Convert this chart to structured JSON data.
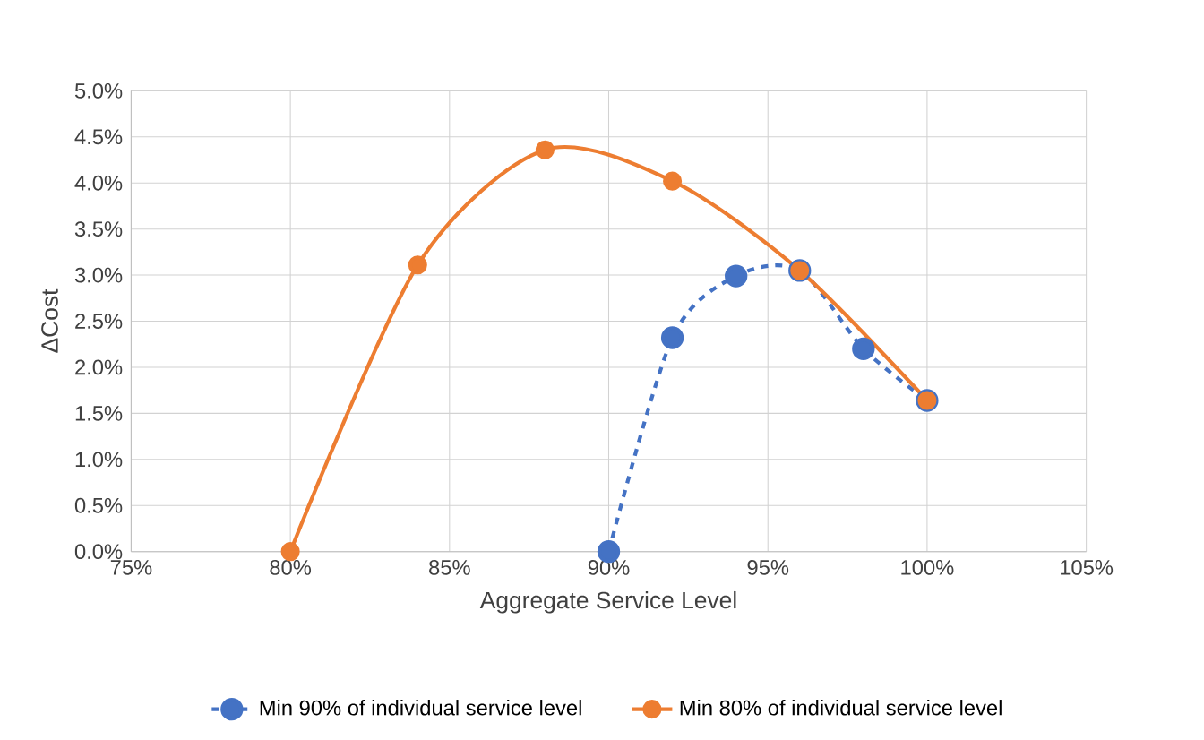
{
  "chart_data": {
    "type": "line",
    "xlabel": "Aggregate Service Level",
    "ylabel": "ΔCost",
    "xlim": [
      75,
      105
    ],
    "ylim": [
      0,
      5
    ],
    "xticks": [
      {
        "value": 75,
        "label": "75%"
      },
      {
        "value": 80,
        "label": "80%"
      },
      {
        "value": 85,
        "label": "85%"
      },
      {
        "value": 90,
        "label": "90%"
      },
      {
        "value": 95,
        "label": "95%"
      },
      {
        "value": 100,
        "label": "100%"
      },
      {
        "value": 105,
        "label": "105%"
      }
    ],
    "yticks": [
      {
        "value": 0,
        "label": "0.0%"
      },
      {
        "value": 0.5,
        "label": "0.5%"
      },
      {
        "value": 1,
        "label": "1.0%"
      },
      {
        "value": 1.5,
        "label": "1.5%"
      },
      {
        "value": 2,
        "label": "2.0%"
      },
      {
        "value": 2.5,
        "label": "2.5%"
      },
      {
        "value": 3,
        "label": "3.0%"
      },
      {
        "value": 3.5,
        "label": "3.5%"
      },
      {
        "value": 4,
        "label": "4.0%"
      },
      {
        "value": 4.5,
        "label": "4.5%"
      },
      {
        "value": 5,
        "label": "5.0%"
      }
    ],
    "grid": true,
    "legend": "bottom",
    "marker": "circle",
    "series": [
      {
        "name": "Min 90% of individual service level",
        "color": "#4472c4",
        "line_style": "dashed",
        "x": [
          90,
          92,
          94,
          96,
          98,
          100
        ],
        "values": [
          0,
          2.32,
          2.99,
          3.05,
          2.2,
          1.64
        ]
      },
      {
        "name": "Min 80% of individual service level",
        "color": "#ed7d31",
        "line_style": "solid",
        "x": [
          80,
          84,
          88,
          92,
          96,
          100
        ],
        "values": [
          0,
          3.11,
          4.36,
          4.02,
          3.05,
          1.64
        ]
      }
    ]
  }
}
